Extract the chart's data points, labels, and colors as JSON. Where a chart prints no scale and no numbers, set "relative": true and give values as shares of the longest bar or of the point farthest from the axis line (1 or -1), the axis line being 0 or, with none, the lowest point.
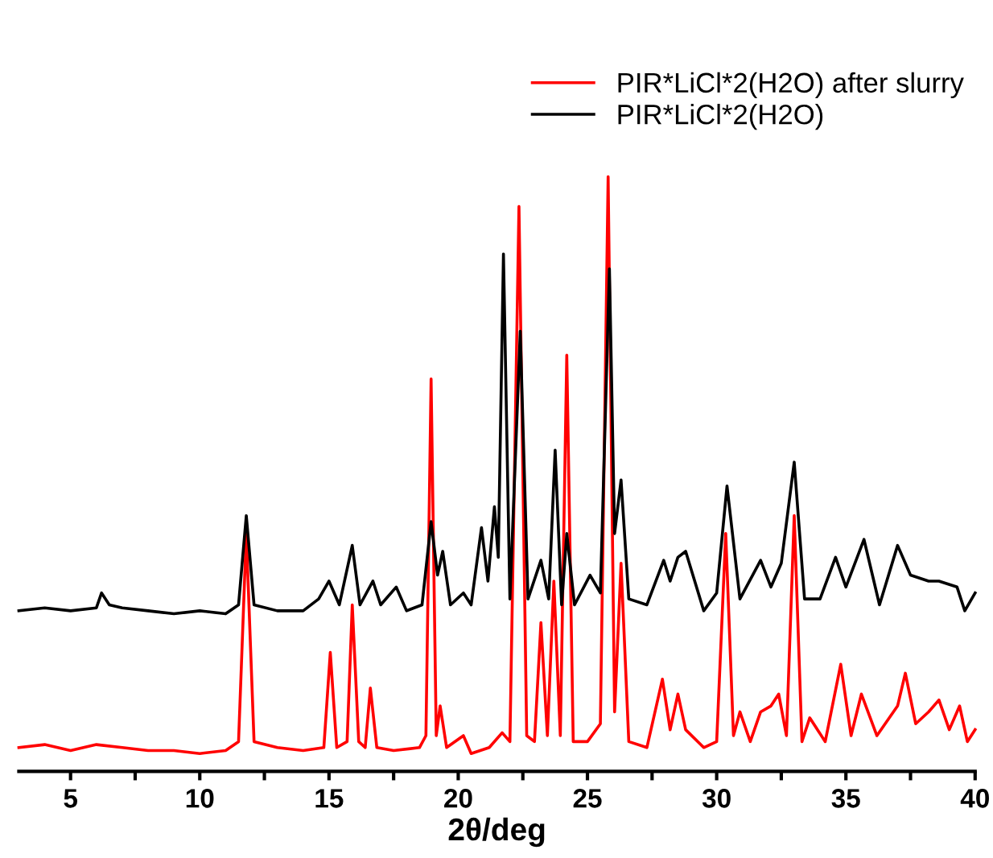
{
  "chart_data": {
    "type": "line",
    "relative": true,
    "xlabel": "2θ/deg",
    "xlim": [
      3,
      40
    ],
    "xticks": [
      5,
      {
        "value": 7.5,
        "label": null
      },
      10,
      {
        "value": 12.5,
        "label": null
      },
      15,
      {
        "value": 17.5,
        "label": null
      },
      20,
      {
        "value": 22.5,
        "label": null
      },
      25,
      {
        "value": 27.5,
        "label": null
      },
      30,
      {
        "value": 32.5,
        "label": null
      },
      35,
      {
        "value": 37.5,
        "label": null
      },
      40
    ],
    "tick_labels": "x",
    "legend": "top right",
    "grid": false,
    "series": [
      {
        "name": "PIR*LiCl*2(H2O) after slurry",
        "color": "#ff0000",
        "x": [
          3,
          4,
          5,
          6,
          7,
          8,
          9,
          10,
          11,
          11.5,
          11.8,
          12.1,
          13,
          14,
          14.8,
          15.05,
          15.3,
          15.7,
          15.9,
          16.15,
          16.4,
          16.6,
          16.85,
          17.5,
          18.5,
          18.75,
          18.95,
          19.15,
          19.3,
          19.55,
          20.2,
          20.5,
          21.2,
          21.7,
          22.0,
          22.35,
          22.65,
          22.95,
          23.2,
          23.45,
          23.7,
          23.95,
          24.2,
          24.45,
          25,
          25.5,
          25.8,
          26.05,
          26.3,
          26.6,
          27.3,
          27.9,
          28.2,
          28.5,
          28.8,
          29.5,
          30.0,
          30.35,
          30.65,
          30.9,
          31.3,
          31.7,
          32.1,
          32.4,
          32.7,
          33.0,
          33.3,
          33.6,
          34.2,
          34.8,
          35.2,
          35.6,
          36.2,
          37.0,
          37.3,
          37.7,
          38.2,
          38.6,
          39.0,
          39.4,
          39.7,
          40
        ],
        "values": [
          0.04,
          0.045,
          0.035,
          0.045,
          0.04,
          0.035,
          0.035,
          0.03,
          0.035,
          0.05,
          0.4,
          0.05,
          0.04,
          0.035,
          0.04,
          0.2,
          0.04,
          0.05,
          0.28,
          0.05,
          0.04,
          0.14,
          0.04,
          0.035,
          0.04,
          0.06,
          0.66,
          0.06,
          0.11,
          0.04,
          0.06,
          0.03,
          0.04,
          0.065,
          0.05,
          0.95,
          0.06,
          0.05,
          0.25,
          0.06,
          0.32,
          0.06,
          0.7,
          0.05,
          0.05,
          0.08,
          1.0,
          0.1,
          0.35,
          0.05,
          0.04,
          0.155,
          0.07,
          0.13,
          0.07,
          0.04,
          0.05,
          0.4,
          0.06,
          0.1,
          0.05,
          0.1,
          0.11,
          0.13,
          0.06,
          0.43,
          0.05,
          0.09,
          0.05,
          0.18,
          0.06,
          0.13,
          0.06,
          0.11,
          0.165,
          0.08,
          0.1,
          0.12,
          0.07,
          0.11,
          0.05,
          0.07
        ]
      },
      {
        "name": "PIR*LiCl*2(H2O)",
        "color": "#000000",
        "x": [
          3,
          4,
          5,
          6,
          6.2,
          6.5,
          7,
          8,
          9,
          10,
          11,
          11.5,
          11.8,
          12.1,
          13,
          14,
          14.6,
          15.0,
          15.4,
          15.9,
          16.2,
          16.7,
          17.0,
          17.6,
          18.0,
          18.6,
          18.95,
          19.2,
          19.4,
          19.7,
          20.2,
          20.5,
          20.9,
          21.15,
          21.4,
          21.55,
          21.75,
          22.0,
          22.4,
          22.7,
          23.2,
          23.5,
          23.75,
          24.0,
          24.2,
          24.5,
          25.1,
          25.5,
          25.85,
          26.05,
          26.3,
          26.6,
          27.3,
          27.95,
          28.2,
          28.5,
          28.8,
          29.5,
          30.0,
          30.4,
          30.9,
          31.7,
          32.1,
          32.5,
          33.0,
          33.4,
          34.0,
          34.6,
          35.0,
          35.7,
          36.3,
          37.0,
          37.5,
          38.2,
          38.6,
          39.3,
          39.6,
          40
        ],
        "values": [
          0.27,
          0.275,
          0.27,
          0.275,
          0.3,
          0.28,
          0.275,
          0.27,
          0.265,
          0.27,
          0.265,
          0.28,
          0.43,
          0.28,
          0.27,
          0.27,
          0.29,
          0.32,
          0.28,
          0.38,
          0.28,
          0.32,
          0.28,
          0.31,
          0.27,
          0.28,
          0.42,
          0.33,
          0.37,
          0.28,
          0.3,
          0.28,
          0.41,
          0.32,
          0.445,
          0.36,
          0.87,
          0.29,
          0.74,
          0.29,
          0.355,
          0.29,
          0.54,
          0.28,
          0.4,
          0.28,
          0.33,
          0.3,
          0.845,
          0.4,
          0.49,
          0.29,
          0.28,
          0.355,
          0.32,
          0.36,
          0.37,
          0.27,
          0.3,
          0.48,
          0.29,
          0.355,
          0.31,
          0.35,
          0.52,
          0.29,
          0.29,
          0.36,
          0.31,
          0.39,
          0.28,
          0.38,
          0.33,
          0.32,
          0.32,
          0.31,
          0.27,
          0.3
        ]
      }
    ]
  }
}
